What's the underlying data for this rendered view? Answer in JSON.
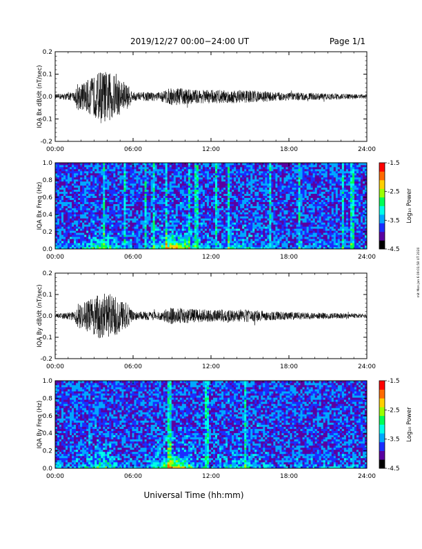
{
  "header": {
    "title": "2019/12/27  00:00−24:00 UT",
    "page": "Page 1/1"
  },
  "footer": {
    "xlabel": "Universal Time (hh:mm)",
    "side_note": "mit Mon Jan 6 09:01:58 UT 2020"
  },
  "colorbar": {
    "label": "Log₁₀ Power",
    "ticks": [
      "-1.5",
      "-2.5",
      "-3.5",
      "-4.5"
    ],
    "range": [
      -4.5,
      -1.5
    ],
    "colors": [
      "#000000",
      "#5a00a0",
      "#1a2dff",
      "#00a8ff",
      "#00ffe8",
      "#00ff55",
      "#9cff00",
      "#ffd000",
      "#ff6a00",
      "#ff0000"
    ]
  },
  "chart_data": [
    {
      "type": "line",
      "ylabel": "IQA Bx dB/dt (nT/sec)",
      "xlim": [
        0,
        24
      ],
      "ylim": [
        -0.2,
        0.2
      ],
      "xticks": [
        "00:00",
        "06:00",
        "12:00",
        "18:00",
        "24:00"
      ],
      "yticks": [
        "-0.2",
        "-0.1",
        "0.0",
        "0.1",
        "0.2"
      ],
      "envelope": [
        {
          "t": 0,
          "amp": 0.01
        },
        {
          "t": 1.5,
          "amp": 0.02
        },
        {
          "t": 1.7,
          "amp": 0.06
        },
        {
          "t": 2.0,
          "amp": 0.06
        },
        {
          "t": 3.0,
          "amp": 0.09
        },
        {
          "t": 3.5,
          "amp": 0.12
        },
        {
          "t": 4.5,
          "amp": 0.1
        },
        {
          "t": 5.5,
          "amp": 0.06
        },
        {
          "t": 6.0,
          "amp": 0.02
        },
        {
          "t": 8.0,
          "amp": 0.02
        },
        {
          "t": 9.0,
          "amp": 0.04
        },
        {
          "t": 11.0,
          "amp": 0.03
        },
        {
          "t": 14.5,
          "amp": 0.03
        },
        {
          "t": 17.0,
          "amp": 0.02
        },
        {
          "t": 24.0,
          "amp": 0.01
        }
      ]
    },
    {
      "type": "heatmap",
      "ylabel": "IQA Bx Freq (Hz)",
      "xlim": [
        0,
        24
      ],
      "ylim": [
        0.0,
        1.0
      ],
      "xticks": [
        "00:00",
        "06:00",
        "12:00",
        "18:00",
        "24:00"
      ],
      "yticks": [
        "0.0",
        "0.2",
        "0.4",
        "0.6",
        "0.8",
        "1.0"
      ],
      "zlim": [
        -4.5,
        -1.5
      ]
    },
    {
      "type": "line",
      "ylabel": "IQA By dB/dt (nT/sec)",
      "xlim": [
        0,
        24
      ],
      "ylim": [
        -0.2,
        0.2
      ],
      "xticks": [
        "00:00",
        "06:00",
        "12:00",
        "18:00",
        "24:00"
      ],
      "yticks": [
        "-0.2",
        "-0.1",
        "0.0",
        "0.1",
        "0.2"
      ],
      "envelope": [
        {
          "t": 0,
          "amp": 0.01
        },
        {
          "t": 1.5,
          "amp": 0.02
        },
        {
          "t": 1.7,
          "amp": 0.06
        },
        {
          "t": 2.0,
          "amp": 0.06
        },
        {
          "t": 3.0,
          "amp": 0.09
        },
        {
          "t": 3.5,
          "amp": 0.11
        },
        {
          "t": 4.5,
          "amp": 0.1
        },
        {
          "t": 5.5,
          "amp": 0.06
        },
        {
          "t": 6.0,
          "amp": 0.02
        },
        {
          "t": 8.0,
          "amp": 0.02
        },
        {
          "t": 9.0,
          "amp": 0.04
        },
        {
          "t": 11.0,
          "amp": 0.03
        },
        {
          "t": 14.5,
          "amp": 0.03
        },
        {
          "t": 17.0,
          "amp": 0.02
        },
        {
          "t": 24.0,
          "amp": 0.01
        }
      ]
    },
    {
      "type": "heatmap",
      "ylabel": "IQA By Freq (Hz)",
      "xlim": [
        0,
        24
      ],
      "ylim": [
        0.0,
        1.0
      ],
      "xticks": [
        "00:00",
        "06:00",
        "12:00",
        "18:00",
        "24:00"
      ],
      "yticks": [
        "0.0",
        "0.2",
        "0.4",
        "0.6",
        "0.8",
        "1.0"
      ],
      "zlim": [
        -4.5,
        -1.5
      ]
    }
  ]
}
